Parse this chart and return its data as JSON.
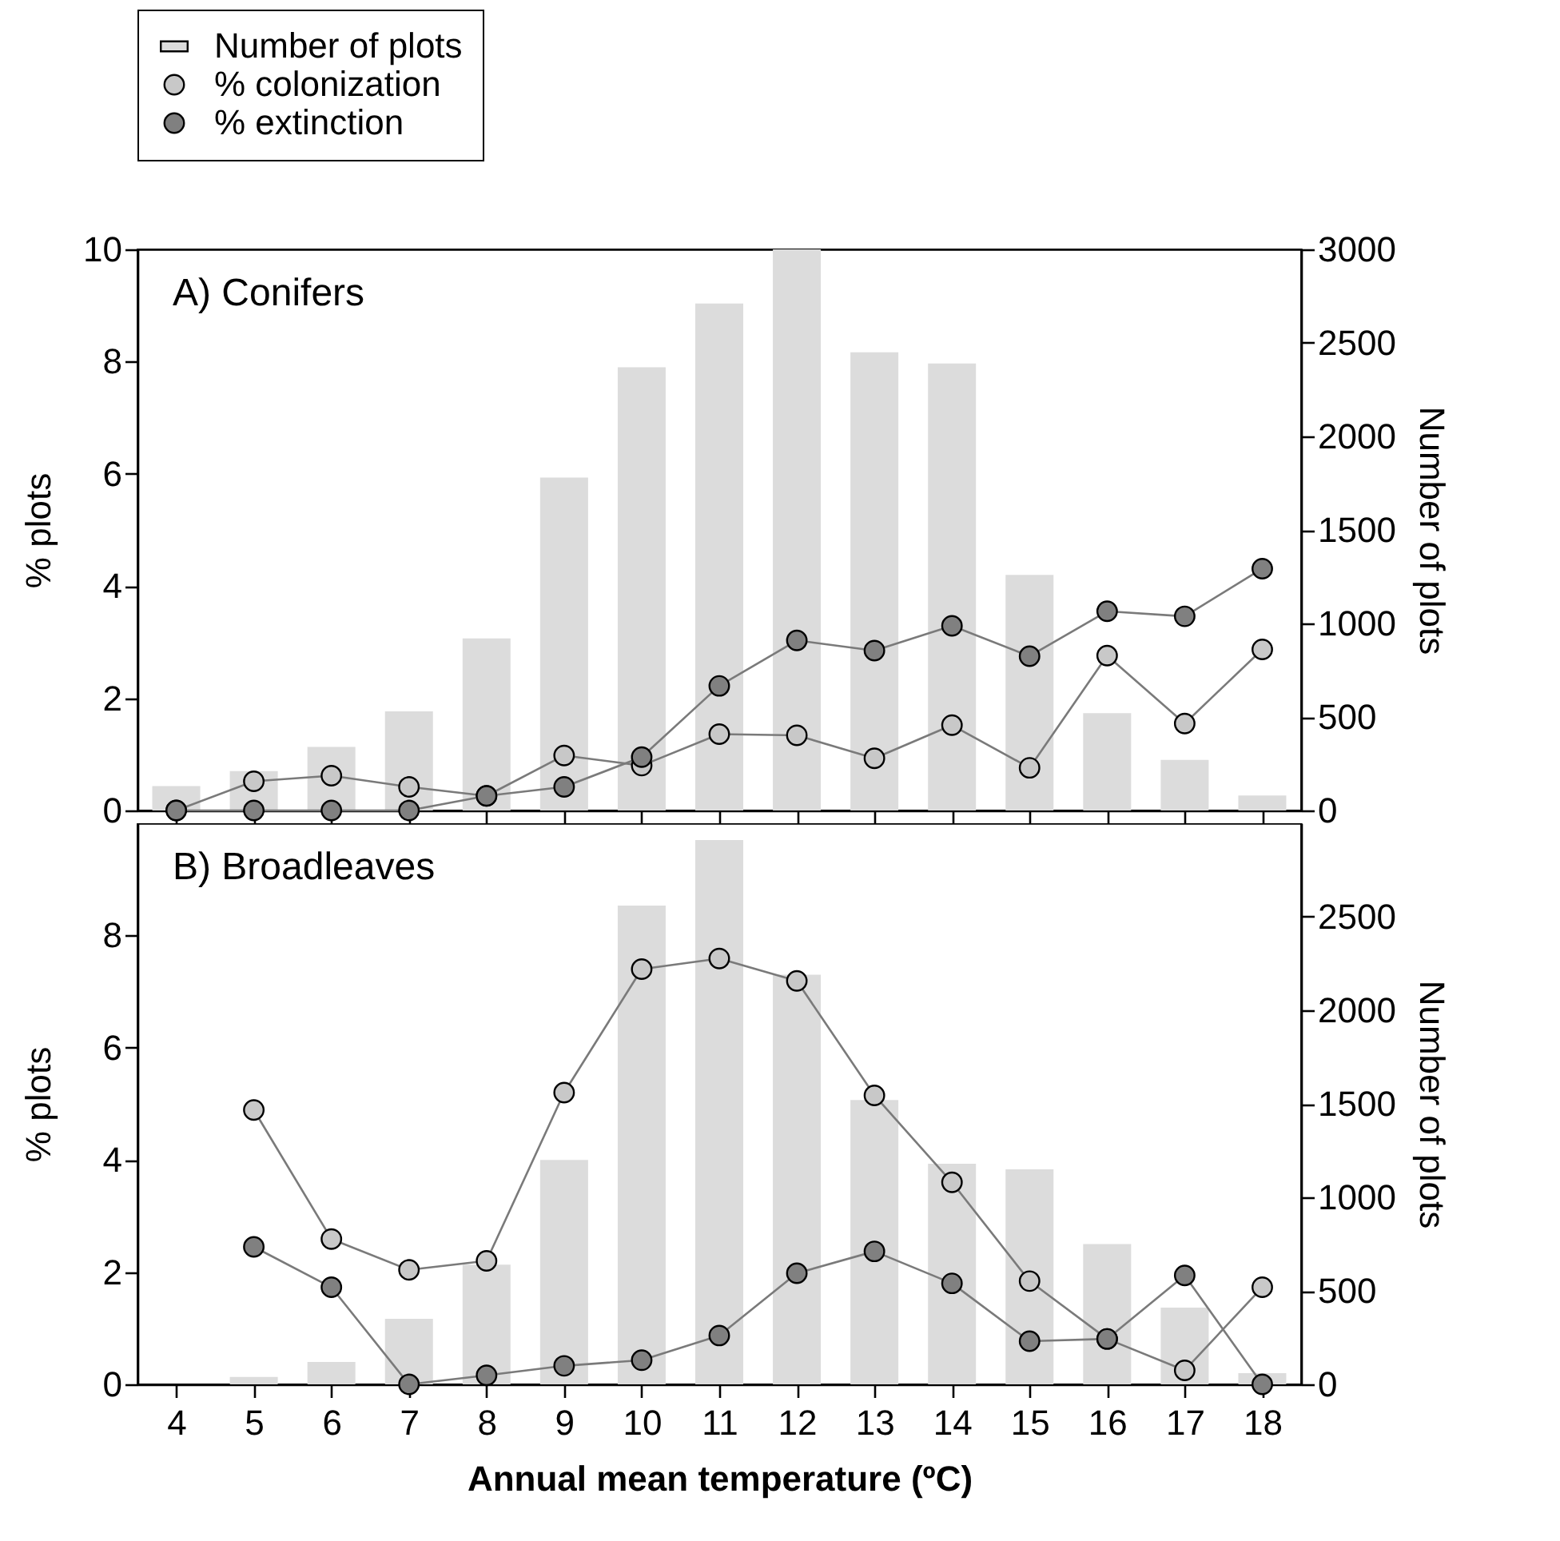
{
  "chart_data": [
    {
      "type": "line",
      "title": "A) Conifers",
      "ylabel": "% plots",
      "y2label": "Number of plots",
      "x": [
        4,
        5,
        6,
        7,
        8,
        9,
        10,
        11,
        12,
        13,
        14,
        15,
        16,
        17,
        18
      ],
      "xlim": [
        3.5,
        18.5
      ],
      "xticks": [
        4,
        5,
        6,
        7,
        8,
        9,
        10,
        11,
        12,
        13,
        14,
        15,
        16,
        17,
        18
      ],
      "ylim": [
        0,
        10
      ],
      "yticks": [
        0,
        2,
        4,
        6,
        8,
        10
      ],
      "y2lim": [
        0,
        3000
      ],
      "y2ticks": [
        0,
        500,
        1000,
        1500,
        2000,
        2500,
        3000
      ],
      "tick_labels": "y",
      "legend": "top left",
      "marker": "circle",
      "line_style": "solid",
      "series": [
        {
          "name": "Number of plots",
          "type": "bar",
          "axis": "y2",
          "color": "#dcdcdc",
          "values": [
            130,
            210,
            340,
            530,
            920,
            1780,
            2370,
            2710,
            3000,
            2450,
            2390,
            1260,
            520,
            270,
            80
          ]
        },
        {
          "name": "% colonization",
          "color": "#c8c8c8",
          "values": [
            0,
            0.52,
            0.62,
            0.42,
            0.26,
            0.98,
            0.8,
            1.36,
            1.34,
            0.93,
            1.52,
            0.76,
            2.76,
            1.55,
            2.87
          ]
        },
        {
          "name": "% extinction",
          "color": "#808080",
          "values": [
            0,
            0,
            0,
            0,
            0.26,
            0.42,
            0.95,
            2.22,
            3.03,
            2.85,
            3.29,
            2.75,
            3.55,
            3.46,
            4.31
          ]
        }
      ]
    },
    {
      "type": "line",
      "title": "B) Broadleaves",
      "xlabel": "Annual mean temperature (ºC)",
      "ylabel": "% plots",
      "y2label": "Number of plots",
      "x": [
        4,
        5,
        6,
        7,
        8,
        9,
        10,
        11,
        12,
        13,
        14,
        15,
        16,
        17,
        18
      ],
      "xlim": [
        3.5,
        18.5
      ],
      "xticks": [
        4,
        5,
        6,
        7,
        8,
        9,
        10,
        11,
        12,
        13,
        14,
        15,
        16,
        17,
        18
      ],
      "ylim": [
        0,
        10
      ],
      "yticks": [
        0,
        2,
        4,
        6,
        8
      ],
      "y2lim": [
        0,
        3000
      ],
      "y2ticks": [
        0,
        500,
        1000,
        1500,
        2000,
        2500
      ],
      "marker": "circle",
      "line_style": "solid",
      "series": [
        {
          "type": "bar",
          "axis": "y2",
          "color": "#dcdcdc",
          "values": [
            0,
            40,
            120,
            350,
            640,
            1200,
            2560,
            2910,
            2190,
            1520,
            1180,
            1150,
            750,
            410,
            60
          ]
        },
        {
          "color": "#c8c8c8",
          "values": [
            null,
            4.89,
            2.59,
            2.04,
            2.2,
            5.2,
            7.4,
            7.59,
            7.19,
            5.15,
            3.6,
            1.84,
            0.81,
            0.25,
            1.73
          ]
        },
        {
          "color": "#808080",
          "values": [
            null,
            2.45,
            1.73,
            0,
            0.16,
            0.33,
            0.43,
            0.87,
            1.98,
            2.37,
            1.8,
            0.77,
            0.81,
            1.94,
            0
          ]
        }
      ]
    }
  ]
}
